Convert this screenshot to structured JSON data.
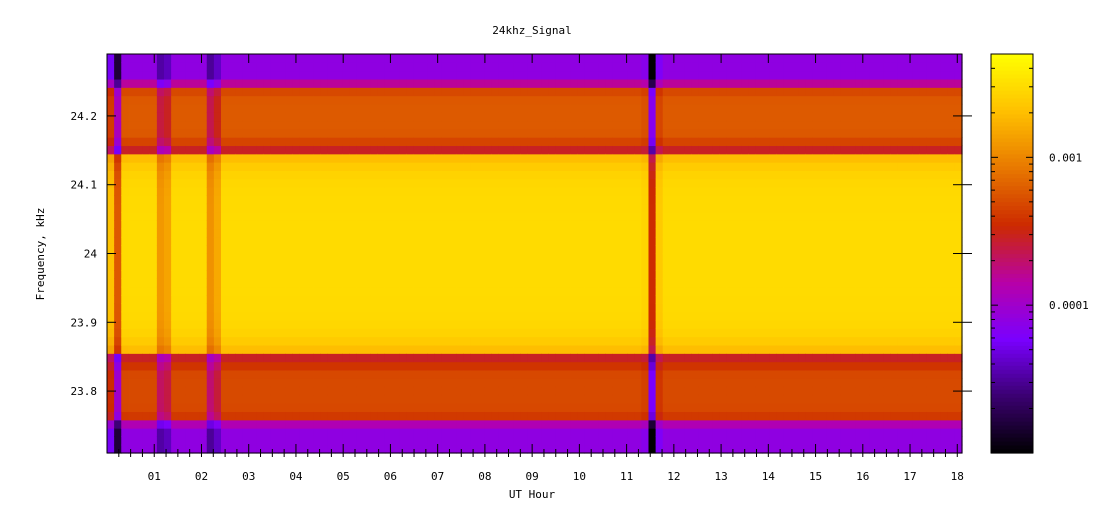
{
  "chart_data": {
    "type": "heatmap",
    "title": "24khz_Signal",
    "xlabel": "UT Hour",
    "ylabel": "Frequency, kHz",
    "xlim": [
      0,
      18.1
    ],
    "ylim": [
      23.71,
      24.29
    ],
    "x_ticks": [
      {
        "value": 1,
        "label": "01"
      },
      {
        "value": 2,
        "label": "02"
      },
      {
        "value": 3,
        "label": "03"
      },
      {
        "value": 4,
        "label": "04"
      },
      {
        "value": 5,
        "label": "05"
      },
      {
        "value": 6,
        "label": "06"
      },
      {
        "value": 7,
        "label": "07"
      },
      {
        "value": 8,
        "label": "08"
      },
      {
        "value": 9,
        "label": "09"
      },
      {
        "value": 10,
        "label": "10"
      },
      {
        "value": 11,
        "label": "11"
      },
      {
        "value": 12,
        "label": "12"
      },
      {
        "value": 13,
        "label": "13"
      },
      {
        "value": 14,
        "label": "14"
      },
      {
        "value": 15,
        "label": "15"
      },
      {
        "value": 16,
        "label": "16"
      },
      {
        "value": 17,
        "label": "17"
      },
      {
        "value": 18,
        "label": "18"
      }
    ],
    "y_ticks": [
      {
        "value": 23.8,
        "label": "23.8"
      },
      {
        "value": 23.9,
        "label": "23.9"
      },
      {
        "value": 24.0,
        "label": "24"
      },
      {
        "value": 24.1,
        "label": "24.1"
      },
      {
        "value": 24.2,
        "label": "24.2"
      }
    ],
    "colorbar": {
      "scale": "log",
      "range": [
        1e-05,
        0.005
      ],
      "ticks": [
        {
          "value": 0.0001,
          "label": "0.0001"
        },
        {
          "value": 0.001,
          "label": "0.001"
        }
      ],
      "colormap": [
        "#000000",
        "#3a0070",
        "#7a00ff",
        "#b800a8",
        "#cc2a00",
        "#e87800",
        "#ffc000",
        "#ffff00"
      ]
    },
    "bands": [
      {
        "y_min": 23.86,
        "y_max": 24.14,
        "level": 0.003
      },
      {
        "y_min": 24.16,
        "y_max": 24.24,
        "level": 0.0006
      },
      {
        "y_min": 23.76,
        "y_max": 23.84,
        "level": 0.0005
      }
    ],
    "dropouts_x": [
      0.2,
      1.2,
      2.25,
      11.55
    ],
    "grid": false
  }
}
